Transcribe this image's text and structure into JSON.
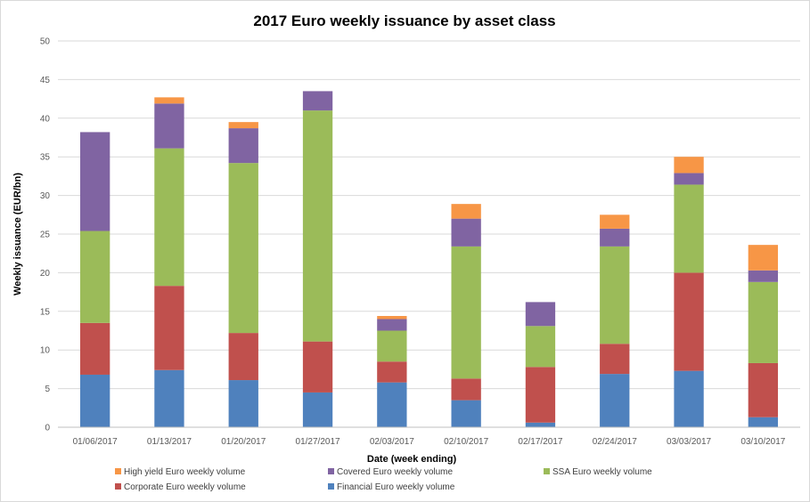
{
  "chart_data": {
    "type": "bar",
    "stacked": true,
    "title": "2017 Euro weekly issuance by asset class",
    "xlabel": "Date (week ending)",
    "ylabel": "Weekly issuance  (EUR/bn)",
    "ylim": [
      0,
      50
    ],
    "yticks": [
      0,
      5,
      10,
      15,
      20,
      25,
      30,
      35,
      40,
      45,
      50
    ],
    "grid": true,
    "legend_position": "bottom",
    "categories": [
      "01/06/2017",
      "01/13/2017",
      "01/20/2017",
      "01/27/2017",
      "02/03/2017",
      "02/10/2017",
      "02/17/2017",
      "02/24/2017",
      "03/03/2017",
      "03/10/2017"
    ],
    "series": [
      {
        "name": "Financial Euro weekly volume",
        "color": "#4f81bd",
        "values": [
          6.8,
          7.4,
          6.1,
          4.5,
          5.8,
          3.5,
          0.6,
          6.9,
          7.3,
          1.3
        ]
      },
      {
        "name": "Corporate Euro weekly volume",
        "color": "#c0504d",
        "values": [
          6.7,
          10.9,
          6.1,
          6.6,
          2.7,
          2.8,
          7.2,
          3.9,
          12.7,
          7.0
        ]
      },
      {
        "name": "SSA Euro weekly volume",
        "color": "#9bbb59",
        "values": [
          11.9,
          17.8,
          22.0,
          29.9,
          4.0,
          17.1,
          5.3,
          12.6,
          11.4,
          10.5
        ]
      },
      {
        "name": "Covered Euro weekly volume",
        "color": "#8064a2",
        "values": [
          12.8,
          5.8,
          4.5,
          2.5,
          1.5,
          3.6,
          3.1,
          2.3,
          1.5,
          1.5
        ]
      },
      {
        "name": "High yield Euro weekly volume",
        "color": "#f79646",
        "values": [
          0.0,
          0.8,
          0.8,
          0.0,
          0.4,
          1.9,
          0.0,
          1.8,
          2.1,
          3.3
        ]
      }
    ],
    "legend_order": [
      "High yield Euro weekly volume",
      "Covered Euro weekly volume",
      "SSA Euro weekly volume",
      "Corporate Euro weekly volume",
      "Financial Euro weekly volume"
    ]
  }
}
